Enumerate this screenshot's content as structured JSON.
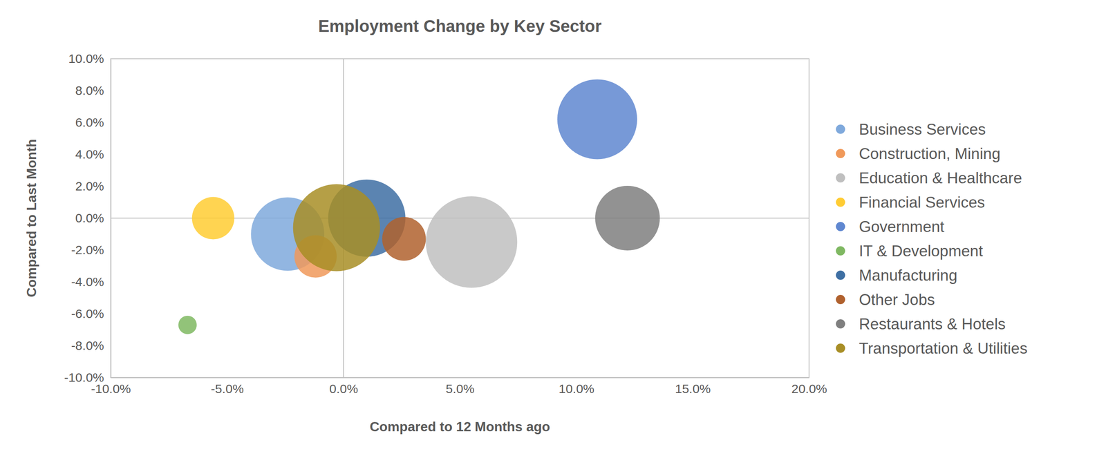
{
  "chart_data": {
    "type": "scatter",
    "title": "Employment Change by Key Sector",
    "x_label": "Compared to 12 Months ago",
    "y_label": "Compared to Last Month",
    "legend": "right",
    "marker": "circle",
    "xlim": [
      -10,
      20
    ],
    "xticks": [
      {
        "value": -10,
        "label": "-10.0%"
      },
      {
        "value": -5,
        "label": "-5.0%"
      },
      {
        "value": 0,
        "label": "0.0%"
      },
      {
        "value": 5,
        "label": "5.0%"
      },
      {
        "value": 10,
        "label": "10.0%"
      },
      {
        "value": 15,
        "label": "15.0%"
      },
      {
        "value": 20,
        "label": "20.0%"
      }
    ],
    "ylim": [
      -10,
      10
    ],
    "yticks": [
      {
        "value": -10,
        "label": "-10.0%"
      },
      {
        "value": -8,
        "label": "-8.0%"
      },
      {
        "value": -6,
        "label": "-6.0%"
      },
      {
        "value": -4,
        "label": "-4.0%"
      },
      {
        "value": -2,
        "label": "-2.0%"
      },
      {
        "value": 0,
        "label": "0.0%"
      },
      {
        "value": 2,
        "label": "2.0%"
      },
      {
        "value": 4,
        "label": "4.0%"
      },
      {
        "value": 6,
        "label": "6.0%"
      },
      {
        "value": 8,
        "label": "8.0%"
      },
      {
        "value": 10,
        "label": "10.0%"
      }
    ],
    "series": [
      {
        "name": "Business Services",
        "color": "#7fa9dc",
        "x": [
          -2.4
        ],
        "values": [
          -1.0
        ],
        "sizes": [
          27
        ]
      },
      {
        "name": "Construction, Mining",
        "color": "#f0995a",
        "x": [
          -1.2
        ],
        "values": [
          -2.4
        ],
        "sizes": [
          9
        ]
      },
      {
        "name": "Education & Healthcare",
        "color": "#bfbfbf",
        "x": [
          5.5
        ],
        "values": [
          -1.5
        ],
        "sizes": [
          42
        ]
      },
      {
        "name": "Financial Services",
        "color": "#ffcc33",
        "x": [
          -5.6
        ],
        "values": [
          0
        ],
        "sizes": [
          9
        ]
      },
      {
        "name": "Government",
        "color": "#5f87d0",
        "x": [
          10.9
        ],
        "values": [
          6.2
        ],
        "sizes": [
          32
        ]
      },
      {
        "name": "IT & Development",
        "color": "#7fb862",
        "x": [
          -6.7
        ],
        "values": [
          -6.7
        ],
        "sizes": [
          1.7
        ]
      },
      {
        "name": "Manufacturing",
        "color": "#3e6fa3",
        "x": [
          1.0
        ],
        "values": [
          0
        ],
        "sizes": [
          30
        ]
      },
      {
        "name": "Other Jobs",
        "color": "#b0612e",
        "x": [
          2.6
        ],
        "values": [
          -1.3
        ],
        "sizes": [
          9.6
        ]
      },
      {
        "name": "Restaurants & Hotels",
        "color": "#7f7f7f",
        "x": [
          12.2
        ],
        "values": [
          0
        ],
        "sizes": [
          21
        ]
      },
      {
        "name": "Transportation & Utilities",
        "color": "#a88e26",
        "x": [
          -0.3
        ],
        "values": [
          -0.6
        ],
        "sizes": [
          38
        ]
      }
    ]
  }
}
